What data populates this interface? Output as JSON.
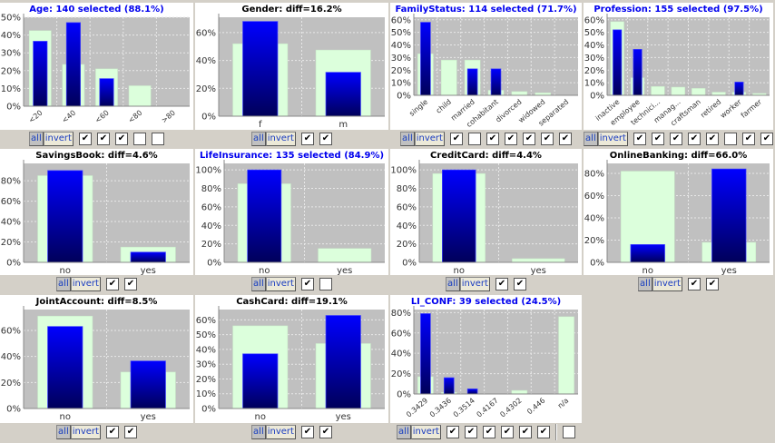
{
  "controls": {
    "all_label": "all",
    "invert_label": "invert"
  },
  "colors": {
    "selected_title": "#0000ee",
    "diff_title": "#000000",
    "overall_bar": "#dcffdc",
    "selected_bar_top": "#0000ff",
    "selected_bar_bottom": "#00005a",
    "plot_bg": "#c0c0c0"
  },
  "chart_data": [
    {
      "type": "bar",
      "title": "Age: 140 selected (88.1%)",
      "title_style": "selected",
      "categories": [
        "<20",
        "<40",
        "<60",
        "<80",
        ">80"
      ],
      "series": [
        {
          "values": [
            42.5,
            23.5,
            21,
            11.5,
            0
          ]
        },
        {
          "values": [
            36.5,
            47,
            15.5,
            0,
            0
          ]
        }
      ],
      "yticks": [
        "0%",
        "10%",
        "20%",
        "30%",
        "40%",
        "50%"
      ],
      "ylim": [
        0,
        50
      ],
      "rotated_labels": true,
      "checkboxes": [
        true,
        true,
        true,
        false,
        false
      ]
    },
    {
      "type": "bar",
      "title": "Gender: diff=16.2%",
      "title_style": "diff",
      "categories": [
        "f",
        "m"
      ],
      "series": [
        {
          "values": [
            52,
            47.5
          ]
        },
        {
          "values": [
            68,
            31.5
          ]
        }
      ],
      "yticks": [
        "0%",
        "20%",
        "40%",
        "60%"
      ],
      "ylim": [
        0,
        71
      ],
      "rotated_labels": false,
      "checkboxes": [
        true,
        true
      ]
    },
    {
      "type": "bar",
      "title": "FamilyStatus: 114 selected (71.7%)",
      "title_style": "selected",
      "categories": [
        "single",
        "child",
        "married",
        "cohabitant",
        "divorced",
        "widowed",
        "separated"
      ],
      "series": [
        {
          "values": [
            33,
            28,
            28,
            4,
            3,
            2,
            0
          ]
        },
        {
          "values": [
            58,
            0,
            21,
            21,
            0,
            0,
            0
          ]
        }
      ],
      "yticks": [
        "0%",
        "10%",
        "20%",
        "30%",
        "40%",
        "50%",
        "60%"
      ],
      "ylim": [
        0,
        62
      ],
      "rotated_labels": true,
      "checkboxes": [
        true,
        false,
        true,
        true,
        true,
        true,
        true
      ]
    },
    {
      "type": "bar",
      "title": "Profession: 155 selected (97.5%)",
      "title_style": "selected",
      "categories": [
        "inactive",
        "employee",
        "technici...",
        "manag...",
        "craftsman",
        "retired",
        "worker",
        "farmer"
      ],
      "series": [
        {
          "values": [
            58.5,
            14,
            7,
            6.5,
            5.5,
            2.5,
            2.5,
            1.5
          ]
        },
        {
          "values": [
            52,
            36.5,
            0,
            0,
            0,
            0,
            10.5,
            0
          ]
        }
      ],
      "yticks": [
        "0%",
        "10%",
        "20%",
        "30%",
        "40%",
        "50%",
        "60%"
      ],
      "ylim": [
        0,
        62
      ],
      "rotated_labels": true,
      "checkboxes": [
        true,
        true,
        true,
        true,
        true,
        false,
        true,
        true
      ]
    },
    {
      "type": "bar",
      "title": "SavingsBook: diff=4.6%",
      "title_style": "diff",
      "categories": [
        "no",
        "yes"
      ],
      "series": [
        {
          "values": [
            85,
            15
          ]
        },
        {
          "values": [
            90,
            10
          ]
        }
      ],
      "yticks": [
        "0%",
        "20%",
        "40%",
        "60%",
        "80%"
      ],
      "ylim": [
        0,
        97
      ],
      "rotated_labels": false,
      "checkboxes": [
        true,
        true
      ]
    },
    {
      "type": "bar",
      "title": "LifeInsurance: 135 selected (84.9%)",
      "title_style": "selected",
      "categories": [
        "no",
        "yes"
      ],
      "series": [
        {
          "values": [
            85,
            15
          ]
        },
        {
          "values": [
            100,
            0
          ]
        }
      ],
      "yticks": [
        "0%",
        "20%",
        "40%",
        "60%",
        "80%",
        "100%"
      ],
      "ylim": [
        0,
        107
      ],
      "rotated_labels": false,
      "checkboxes": [
        true,
        false
      ]
    },
    {
      "type": "bar",
      "title": "CreditCard: diff=4.4%",
      "title_style": "diff",
      "categories": [
        "no",
        "yes"
      ],
      "series": [
        {
          "values": [
            96,
            4
          ]
        },
        {
          "values": [
            100,
            0
          ]
        }
      ],
      "yticks": [
        "0%",
        "20%",
        "40%",
        "60%",
        "80%",
        "100%"
      ],
      "ylim": [
        0,
        107
      ],
      "rotated_labels": false,
      "checkboxes": [
        true,
        true
      ]
    },
    {
      "type": "bar",
      "title": "OnlineBanking: diff=66.0%",
      "title_style": "diff",
      "categories": [
        "no",
        "yes"
      ],
      "series": [
        {
          "values": [
            82,
            18
          ]
        },
        {
          "values": [
            16,
            84
          ]
        }
      ],
      "yticks": [
        "0%",
        "20%",
        "40%",
        "60%",
        "80%"
      ],
      "ylim": [
        0,
        89
      ],
      "rotated_labels": false,
      "checkboxes": [
        true,
        true
      ]
    },
    {
      "type": "bar",
      "title": "JointAccount: diff=8.5%",
      "title_style": "diff",
      "categories": [
        "no",
        "yes"
      ],
      "series": [
        {
          "values": [
            71,
            28
          ]
        },
        {
          "values": [
            63,
            36.5
          ]
        }
      ],
      "yticks": [
        "0%",
        "20%",
        "40%",
        "60%"
      ],
      "ylim": [
        0,
        76
      ],
      "rotated_labels": false,
      "checkboxes": [
        true,
        true
      ]
    },
    {
      "type": "bar",
      "title": "CashCard: diff=19.1%",
      "title_style": "diff",
      "categories": [
        "no",
        "yes"
      ],
      "series": [
        {
          "values": [
            56,
            44
          ]
        },
        {
          "values": [
            37,
            63
          ]
        }
      ],
      "yticks": [
        "0%",
        "10%",
        "20%",
        "30%",
        "40%",
        "50%",
        "60%"
      ],
      "ylim": [
        0,
        67
      ],
      "rotated_labels": false,
      "checkboxes": [
        true,
        true
      ]
    },
    {
      "type": "bar",
      "title": "LI_CONF: 39 selected (24.5%)",
      "title_style": "selected",
      "categories": [
        "0.3429",
        "0.3436",
        "0.3514",
        "0.4167",
        "0.4302",
        "0.446",
        "n/a"
      ],
      "series": [
        {
          "values": [
            17,
            1.5,
            0,
            0,
            3.5,
            0,
            76
          ]
        },
        {
          "values": [
            79,
            16,
            5,
            0,
            0,
            0,
            0
          ]
        }
      ],
      "yticks": [
        "0%",
        "20%",
        "40%",
        "60%",
        "80%"
      ],
      "ylim": [
        0,
        83
      ],
      "rotated_labels": true,
      "separator_before_last": true,
      "checkboxes": [
        true,
        true,
        true,
        true,
        true,
        true,
        false
      ]
    }
  ]
}
